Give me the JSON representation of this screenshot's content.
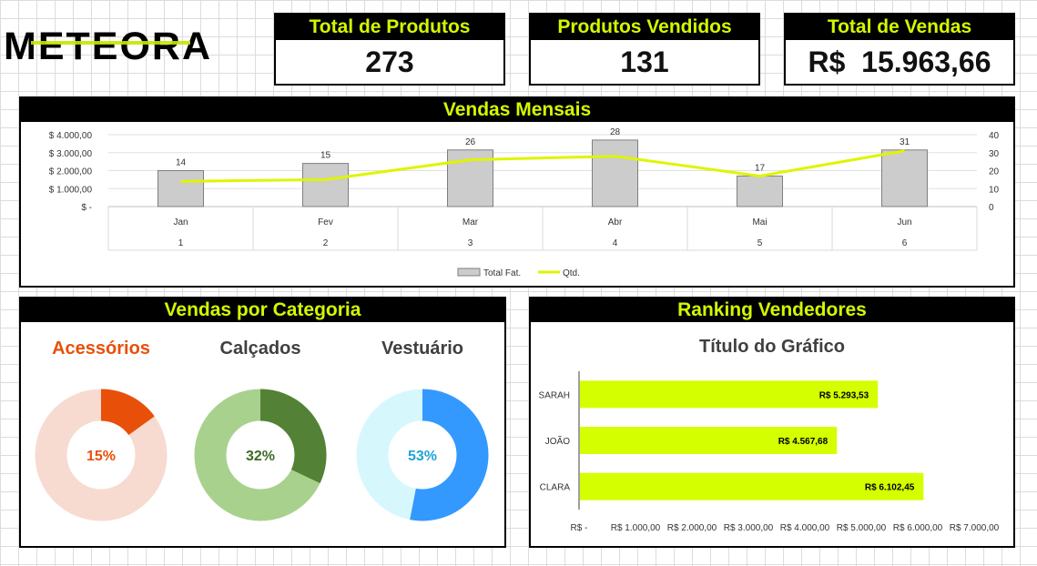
{
  "brand": {
    "logo": "METEORA",
    "accent": "#d4f700"
  },
  "kpis": [
    {
      "label": "Total de Produtos",
      "value": "273"
    },
    {
      "label": "Produtos Vendidos",
      "value": "131"
    },
    {
      "label": "Total de Vendas",
      "value": "R$  15.963,66"
    }
  ],
  "panels": {
    "monthly": "Vendas Mensais",
    "category": "Vendas por Categoria",
    "ranking": "Ranking Vendedores"
  },
  "chart_data": [
    {
      "type": "bar",
      "title": "",
      "categories": [
        "Jan",
        "Fev",
        "Mar",
        "Abr",
        "Mai",
        "Jun"
      ],
      "categories_sub": [
        "1",
        "2",
        "3",
        "4",
        "5",
        "6"
      ],
      "series": [
        {
          "name": "Total Fat.",
          "kind": "bar",
          "axis": "left",
          "values": [
            2000,
            2400,
            3150,
            3700,
            1700,
            3150
          ],
          "color": "#cccccc"
        },
        {
          "name": "Qtd.",
          "kind": "line",
          "axis": "right",
          "values": [
            14,
            15,
            26,
            28,
            17,
            31
          ],
          "color": "#dff500"
        }
      ],
      "ylim": [
        0,
        4000
      ],
      "yticks": [
        "$ -",
        "$ 1.000,00",
        "$ 2.000,00",
        "$ 3.000,00",
        "$ 4.000,00"
      ],
      "y2lim": [
        0,
        40
      ],
      "y2ticks": [
        "0",
        "10",
        "20",
        "30",
        "40"
      ],
      "legend": "bottom",
      "grid": true
    },
    {
      "type": "pie",
      "donuts": [
        {
          "title": "Acessórios",
          "percent_label": "15%",
          "value": 0.15,
          "color": "#e8500a",
          "rest_color": "#f7dbd0",
          "title_color": "#e8500a",
          "label_color": "#e8500a"
        },
        {
          "title": "Calçados",
          "percent_label": "32%",
          "value": 0.32,
          "color": "#538135",
          "rest_color": "#a9d18e",
          "title_color": "#404040",
          "label_color": "#3f6b26"
        },
        {
          "title": "Vestuário",
          "percent_label": "53%",
          "value": 0.53,
          "color": "#3399ff",
          "rest_color": "#d6f8fd",
          "title_color": "#404040",
          "label_color": "#1fa3d8"
        }
      ]
    },
    {
      "type": "bar",
      "orientation": "horizontal",
      "title": "Título do Gráfico",
      "categories": [
        "SARAH",
        "JOÃO",
        "CLARA"
      ],
      "values": [
        5293.53,
        4567.68,
        6102.45
      ],
      "value_labels": [
        "R$ 5.293,53",
        "R$ 4.567,68",
        "R$ 6.102,45"
      ],
      "xlim": [
        0,
        7000
      ],
      "xticks": [
        "R$ -",
        "R$ 1.000,00",
        "R$ 2.000,00",
        "R$ 3.000,00",
        "R$ 4.000,00",
        "R$ 5.000,00",
        "R$ 6.000,00",
        "R$ 7.000,00"
      ],
      "color": "#d4ff00"
    }
  ]
}
